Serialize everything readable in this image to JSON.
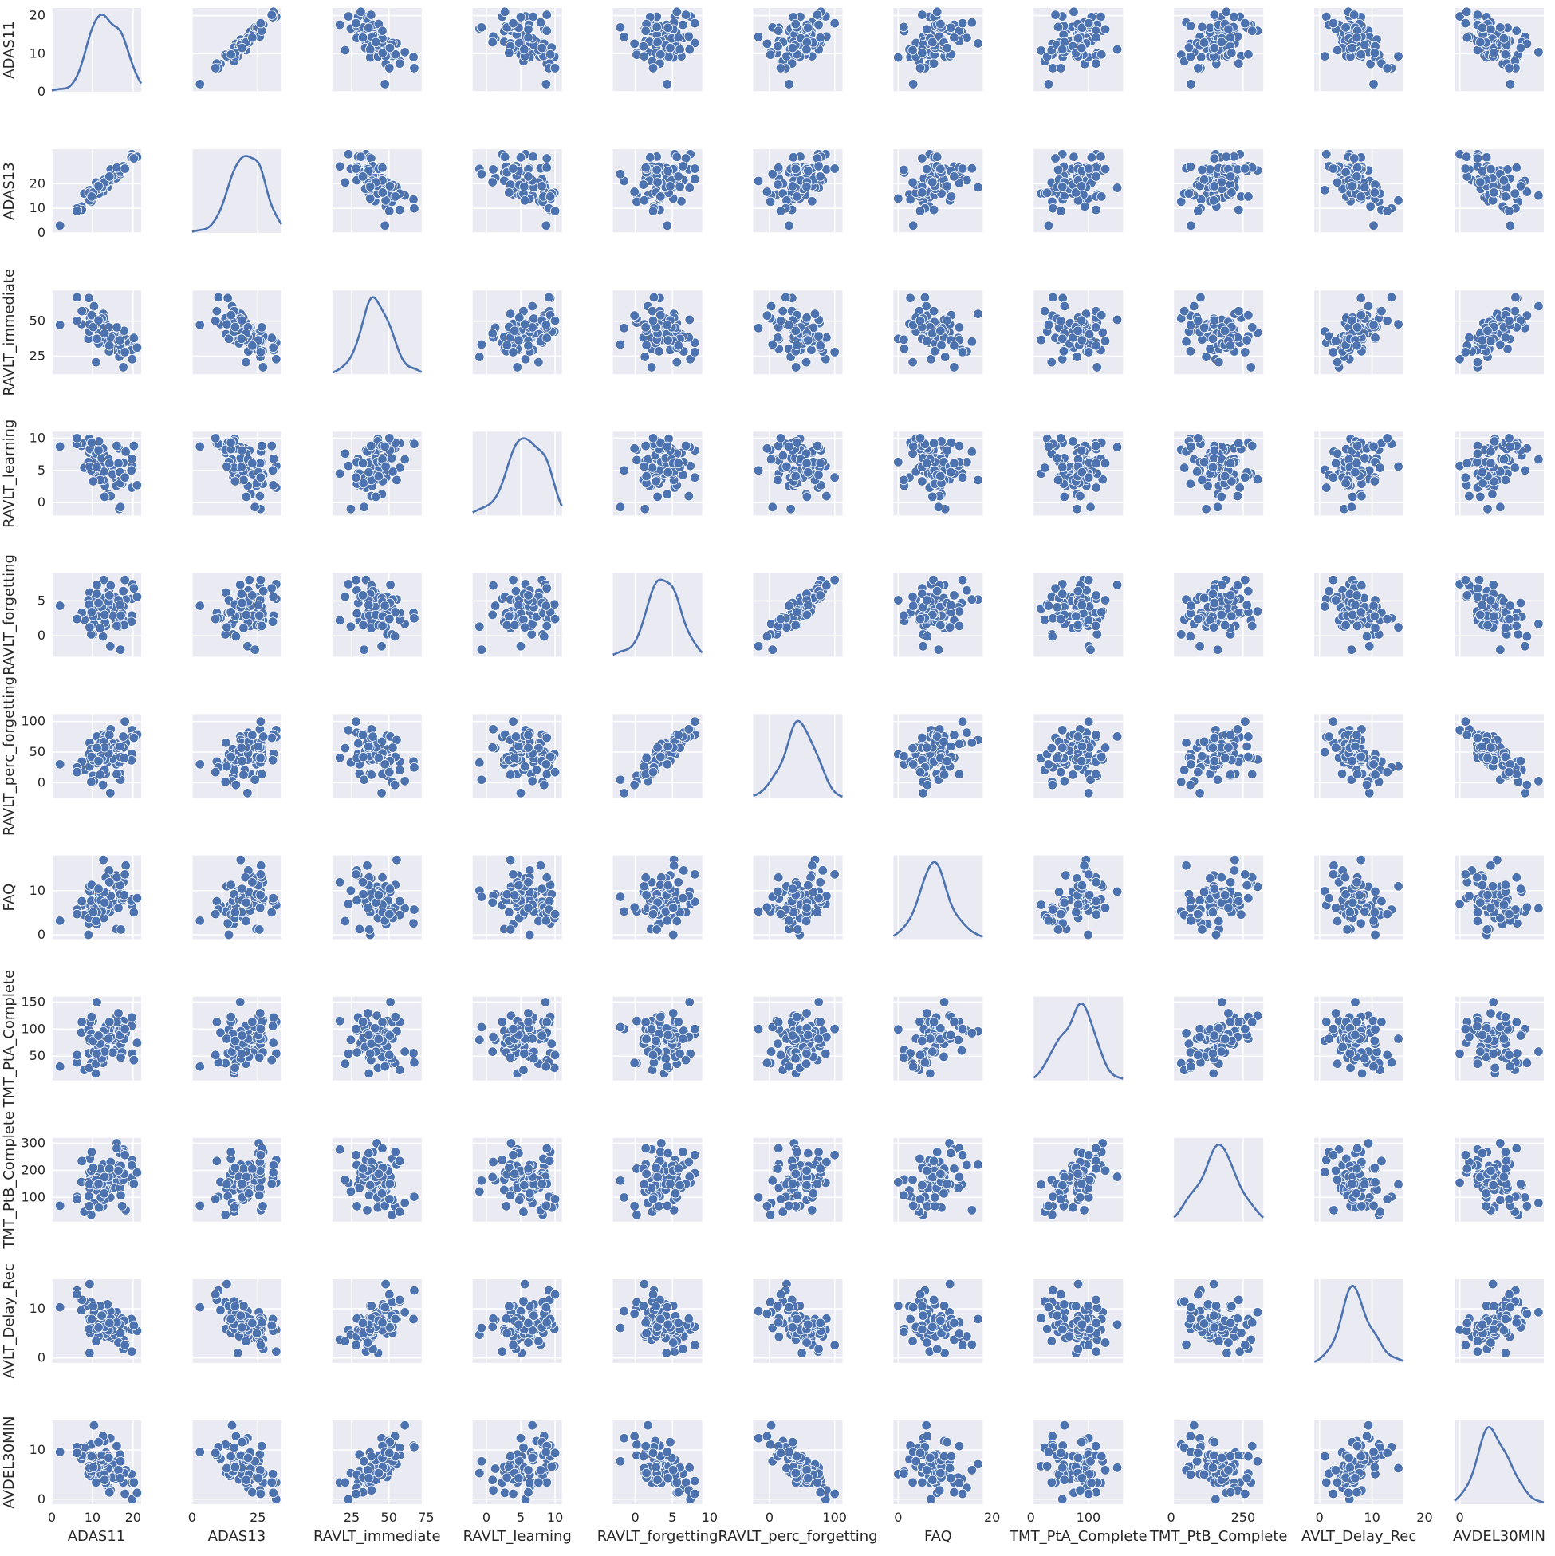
{
  "chart_data": {
    "type": "pairplot",
    "variables": [
      "ADAS11",
      "ADAS13",
      "RAVLT_immediate",
      "RAVLT_learning",
      "RAVLT_forgetting",
      "RAVLT_perc_forgetting",
      "FAQ",
      "TMT_PtA_Complete",
      "TMT_PtB_Complete",
      "AVLT_Delay_Rec",
      "AVDEL30MIN"
    ],
    "diagonal": "kde",
    "off_diagonal": "scatter",
    "n_points": 80,
    "marker_color": "#4c72b0",
    "line_color": "#4c72b0",
    "background_color": "#eaeaf2",
    "grid": true,
    "axes": {
      "ADAS11": {
        "lim": [
          0,
          22
        ],
        "ticks": [
          0,
          10,
          20
        ],
        "data_range": [
          2,
          21
        ]
      },
      "ADAS13": {
        "lim": [
          0,
          34
        ],
        "ticks": [
          0,
          10,
          20
        ],
        "x_ticks": [
          0,
          25
        ],
        "data_range": [
          3,
          32
        ]
      },
      "RAVLT_immediate": {
        "lim": [
          12,
          72
        ],
        "ticks": [
          25,
          50
        ],
        "x_ticks": [
          25,
          50,
          75
        ],
        "data_range": [
          17,
          67
        ]
      },
      "RAVLT_learning": {
        "lim": [
          -2,
          11
        ],
        "ticks": [
          0,
          5,
          10
        ],
        "data_range": [
          -1,
          10
        ]
      },
      "RAVLT_forgetting": {
        "lim": [
          -3,
          9
        ],
        "ticks": [
          0,
          5
        ],
        "x_ticks": [
          0,
          5,
          10
        ],
        "data_range": [
          -2,
          8
        ]
      },
      "RAVLT_perc_forgetting": {
        "lim": [
          -25,
          112
        ],
        "ticks": [
          0,
          50,
          100
        ],
        "x_ticks": [
          0,
          100
        ],
        "data_range": [
          -17,
          100
        ]
      },
      "FAQ": {
        "lim": [
          -1,
          18
        ],
        "ticks": [
          0,
          10
        ],
        "x_ticks": [
          0,
          20
        ],
        "data_range": [
          0,
          17
        ]
      },
      "TMT_PtA_Complete": {
        "lim": [
          5,
          160
        ],
        "ticks": [
          50,
          100,
          150
        ],
        "x_ticks": [
          0,
          100
        ],
        "data_range": [
          18,
          150
        ]
      },
      "TMT_PtB_Complete": {
        "lim": [
          10,
          320
        ],
        "ticks": [
          100,
          200,
          300
        ],
        "x_ticks": [
          0,
          250
        ],
        "data_range": [
          35,
          300
        ]
      },
      "AVLT_Delay_Rec": {
        "lim": [
          -1,
          16
        ],
        "ticks": [
          0,
          10
        ],
        "x_ticks": [
          0,
          10,
          20
        ],
        "data_range": [
          1,
          15
        ]
      },
      "AVDEL30MIN": {
        "lim": [
          -1,
          16
        ],
        "ticks": [
          0,
          10
        ],
        "x_ticks": [
          0,
          20
        ],
        "data_range": [
          0,
          15
        ]
      }
    },
    "correlations": [
      [
        1.0,
        0.97,
        -0.62,
        -0.5,
        0.15,
        0.35,
        0.2,
        0.4,
        0.4,
        -0.5,
        -0.55
      ],
      [
        0.97,
        1.0,
        -0.65,
        -0.5,
        0.2,
        0.4,
        0.2,
        0.4,
        0.4,
        -0.55,
        -0.6
      ],
      [
        -0.62,
        -0.65,
        1.0,
        0.55,
        -0.25,
        -0.45,
        -0.2,
        -0.25,
        -0.25,
        0.6,
        0.8
      ],
      [
        -0.5,
        -0.5,
        0.55,
        1.0,
        -0.05,
        -0.35,
        -0.2,
        -0.15,
        -0.2,
        0.4,
        0.55
      ],
      [
        0.15,
        0.2,
        -0.25,
        -0.05,
        1.0,
        0.85,
        0.1,
        0.1,
        0.15,
        -0.4,
        -0.55
      ],
      [
        0.35,
        0.4,
        -0.45,
        -0.35,
        0.85,
        1.0,
        0.25,
        0.2,
        0.25,
        -0.6,
        -0.9
      ],
      [
        0.2,
        0.2,
        -0.2,
        -0.2,
        0.1,
        0.25,
        1.0,
        0.4,
        0.35,
        -0.15,
        -0.2
      ],
      [
        0.4,
        0.4,
        -0.25,
        -0.15,
        0.1,
        0.2,
        0.4,
        1.0,
        0.65,
        -0.2,
        -0.25
      ],
      [
        0.4,
        0.4,
        -0.25,
        -0.2,
        0.15,
        0.25,
        0.35,
        0.65,
        1.0,
        -0.2,
        -0.3
      ],
      [
        -0.5,
        -0.55,
        0.6,
        0.4,
        -0.4,
        -0.6,
        -0.15,
        -0.2,
        -0.2,
        1.0,
        0.6
      ],
      [
        -0.55,
        -0.6,
        0.8,
        0.55,
        -0.55,
        -0.9,
        -0.2,
        -0.25,
        -0.3,
        0.6,
        1.0
      ]
    ]
  }
}
